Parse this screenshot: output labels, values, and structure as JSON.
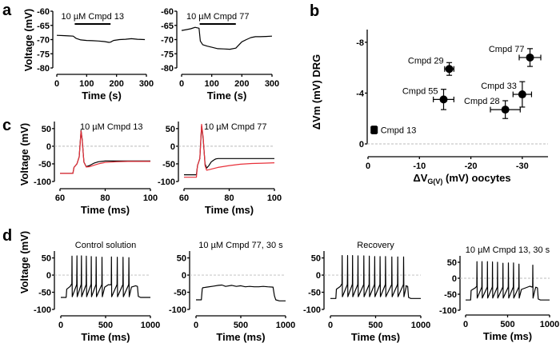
{
  "figure": {
    "panel_letters": [
      "a",
      "b",
      "c",
      "d"
    ],
    "colors": {
      "black": "#000000",
      "red": "#e8303a",
      "zero_line": "#bbbbbb"
    }
  },
  "chart_data": [
    {
      "id": "a1",
      "panel": "a",
      "type": "line",
      "title": "10 µM Cmpd 13",
      "xlabel": "Time (s)",
      "ylabel": "Voltage (mV)",
      "xlim": [
        0,
        300
      ],
      "ylim": [
        -80,
        -60
      ],
      "xticks": [
        0,
        100,
        200,
        300
      ],
      "yticks": [
        -60,
        -65,
        -70,
        -75,
        -80
      ],
      "drug_bar": [
        60,
        180
      ],
      "series": [
        {
          "name": "Vm",
          "color": "#000000",
          "x": [
            0,
            20,
            40,
            55,
            65,
            80,
            100,
            120,
            140,
            160,
            175,
            180,
            190,
            210,
            230,
            250,
            270,
            295
          ],
          "y": [
            -68.5,
            -68.6,
            -68.7,
            -68.8,
            -69.6,
            -70.1,
            -70.3,
            -70.4,
            -70.5,
            -70.7,
            -71.0,
            -70.9,
            -70.3,
            -70.0,
            -69.9,
            -69.7,
            -69.9,
            -70.0
          ]
        }
      ]
    },
    {
      "id": "a2",
      "panel": "a",
      "type": "line",
      "title": "10 µM Cmpd 77",
      "xlabel": "Time (s)",
      "ylabel": "",
      "xlim": [
        0,
        300
      ],
      "ylim": [
        -80,
        -60
      ],
      "xticks": [
        0,
        100,
        200,
        300
      ],
      "yticks": [
        -60,
        -65,
        -70,
        -75,
        -80
      ],
      "drug_bar": [
        60,
        180
      ],
      "series": [
        {
          "name": "Vm",
          "color": "#000000",
          "x": [
            0,
            15,
            30,
            45,
            58,
            62,
            70,
            85,
            100,
            120,
            140,
            160,
            180,
            190,
            200,
            215,
            230,
            245,
            260,
            280,
            300
          ],
          "y": [
            -66.8,
            -66.5,
            -66.2,
            -65.7,
            -66.0,
            -70.5,
            -71.8,
            -72.3,
            -72.7,
            -73.2,
            -73.3,
            -73.4,
            -73.0,
            -71.9,
            -70.8,
            -70.0,
            -69.3,
            -69.0,
            -69.0,
            -68.9,
            -68.8
          ]
        }
      ]
    },
    {
      "id": "b",
      "panel": "b",
      "type": "scatter",
      "xlabel": "ΔVG(V) (mV) oocytes",
      "xlabel_main": "ΔV",
      "xlabel_sub": "G(V)",
      "xlabel_rest": " (mV) oocytes",
      "ylabel": "ΔVm (mV) DRG",
      "xlim": [
        0,
        -35
      ],
      "ylim": [
        0,
        -9
      ],
      "xticks": [
        0,
        -10,
        -20,
        -30
      ],
      "yticks": [
        0,
        -4,
        -8
      ],
      "zero_line": true,
      "points": [
        {
          "label": "Cmpd 13",
          "x": -1.2,
          "y": -1.1,
          "xerr": 0.4,
          "yerr": 0.3,
          "marker": "square"
        },
        {
          "label": "Cmpd 29",
          "x": -15.8,
          "y": -5.9,
          "xerr": 0.9,
          "yerr": 0.5,
          "marker": "circle"
        },
        {
          "label": "Cmpd 55",
          "x": -14.7,
          "y": -3.5,
          "xerr": 2.0,
          "yerr": 0.8,
          "marker": "circle"
        },
        {
          "label": "Cmpd 77",
          "x": -31.5,
          "y": -6.8,
          "xerr": 2.1,
          "yerr": 0.7,
          "marker": "circle"
        },
        {
          "label": "Cmpd 33",
          "x": -30.0,
          "y": -3.9,
          "xerr": 1.8,
          "yerr": 1.0,
          "marker": "circle"
        },
        {
          "label": "Cmpd 28",
          "x": -26.7,
          "y": -2.7,
          "xerr": 2.9,
          "yerr": 0.7,
          "marker": "circle"
        }
      ]
    },
    {
      "id": "c1",
      "panel": "c",
      "type": "line",
      "title": "10 µM Cmpd 13",
      "xlabel": "Time (ms)",
      "ylabel": "Voltage (mV)",
      "xlim": [
        60,
        100
      ],
      "ylim": [
        -100,
        70
      ],
      "xticks": [
        60,
        80,
        100
      ],
      "yticks": [
        50,
        0,
        -50,
        -100
      ],
      "zero_line": true,
      "series": [
        {
          "name": "control",
          "color": "#000000",
          "x": [
            60,
            65.7,
            66.2,
            67.5,
            68.5,
            69.3,
            69.8,
            70.6,
            71.6,
            73,
            75,
            77,
            80,
            85,
            90,
            95,
            100
          ],
          "y": [
            -77,
            -77,
            -60,
            -50,
            -30,
            45,
            20,
            -45,
            -58,
            -55,
            -48,
            -44,
            -42,
            -42,
            -42,
            -42,
            -42
          ]
        },
        {
          "name": "10 µM Cmpd 13",
          "color": "#e8303a",
          "x": [
            60,
            65.7,
            66.2,
            67.5,
            68.5,
            69.3,
            69.8,
            70.6,
            71.6,
            73,
            75,
            77,
            80,
            85,
            90,
            95,
            100
          ],
          "y": [
            -77,
            -77,
            -60,
            -50,
            -30,
            43,
            18,
            -45,
            -59,
            -58,
            -54,
            -50,
            -46,
            -44,
            -43,
            -43,
            -43
          ]
        }
      ]
    },
    {
      "id": "c2",
      "panel": "c",
      "type": "line",
      "title": "10 µM Cmpd 77",
      "xlabel": "Time (ms)",
      "ylabel": "",
      "xlim": [
        60,
        100
      ],
      "ylim": [
        -100,
        70
      ],
      "xticks": [
        60,
        80,
        100
      ],
      "yticks": [
        50,
        0,
        -50,
        -100
      ],
      "zero_line": true,
      "series": [
        {
          "name": "control",
          "color": "#000000",
          "x": [
            60,
            65.5,
            66.0,
            67.0,
            67.8,
            68.5,
            69.3,
            70,
            71,
            72,
            73,
            74,
            75,
            80,
            90,
            100
          ],
          "y": [
            -81,
            -81,
            -55,
            -35,
            58,
            20,
            -50,
            -62,
            -55,
            -45,
            -40,
            -36,
            -35,
            -35,
            -35,
            -35
          ]
        },
        {
          "name": "10 µM Cmpd 77",
          "color": "#e8303a",
          "x": [
            60,
            65.5,
            66.0,
            67.0,
            67.8,
            68.5,
            69.3,
            70,
            72,
            75,
            80,
            85,
            90,
            95,
            100
          ],
          "y": [
            -88,
            -88,
            -55,
            -35,
            62,
            25,
            -55,
            -68,
            -65,
            -60,
            -55,
            -51,
            -49,
            -48,
            -47
          ]
        }
      ]
    },
    {
      "id": "d1",
      "panel": "d",
      "type": "line",
      "title": "Control solution",
      "xlabel": "Time (ms)",
      "ylabel": "Voltage (mV)",
      "xlim": [
        0,
        1000
      ],
      "ylim": [
        -100,
        70
      ],
      "xticks": [
        0,
        500,
        1000
      ],
      "yticks": [
        50,
        0,
        -50,
        -100
      ],
      "zero_line": true,
      "pulse": [
        60,
        860
      ],
      "rest_mV": -65,
      "plateau_mV": -33,
      "spike_times_ms": [
        125,
        180,
        230,
        285,
        340,
        395,
        460,
        565,
        630,
        695,
        760
      ],
      "spike_peaks_mV": [
        55,
        56,
        56,
        55,
        54,
        53,
        52,
        53,
        52,
        52,
        51
      ],
      "trough_mV": -63,
      "series": [
        {
          "name": "Vm",
          "color": "#000000"
        }
      ]
    },
    {
      "id": "d2",
      "panel": "d",
      "type": "line",
      "title": "10 µM Cmpd 77, 30 s",
      "xlabel": "Time (ms)",
      "ylabel": "",
      "xlim": [
        0,
        1000
      ],
      "ylim": [
        -100,
        70
      ],
      "xticks": [
        0,
        500,
        1000
      ],
      "yticks": [
        50,
        0,
        -50,
        -100
      ],
      "zero_line": true,
      "series": [
        {
          "name": "Vm",
          "color": "#000000",
          "x": [
            0,
            60,
            70,
            75,
            120,
            200,
            250,
            290,
            330,
            400,
            450,
            500,
            550,
            600,
            650,
            700,
            750,
            800,
            860,
            875,
            890,
            930,
            1000
          ],
          "y": [
            -72,
            -72,
            -40,
            -37,
            -35,
            -32,
            -30,
            -29,
            -33,
            -30,
            -33,
            -31,
            -34,
            -33,
            -34,
            -34,
            -33,
            -34,
            -35,
            -60,
            -72,
            -75,
            -75
          ]
        }
      ]
    },
    {
      "id": "d3",
      "panel": "d",
      "type": "line",
      "title": "Recovery",
      "xlabel": "Time (ms)",
      "ylabel": "",
      "xlim": [
        0,
        1000
      ],
      "ylim": [
        -100,
        70
      ],
      "xticks": [
        0,
        500,
        1000
      ],
      "yticks": [
        50,
        0,
        -50,
        -100
      ],
      "zero_line": true,
      "pulse": [
        60,
        860
      ],
      "rest_mV": -68,
      "plateau_mV": -33,
      "spike_times_ms": [
        130,
        190,
        245,
        305,
        370,
        430,
        490,
        550,
        610,
        680,
        745,
        810
      ],
      "spike_peaks_mV": [
        57,
        57,
        57,
        56,
        56,
        55,
        54,
        54,
        54,
        53,
        53,
        53
      ],
      "trough_mV": -63,
      "series": [
        {
          "name": "Vm",
          "color": "#000000"
        }
      ]
    },
    {
      "id": "d4",
      "panel": "d",
      "type": "line",
      "title": "10 µM Cmpd 13, 30 s",
      "xlabel": "Time (ms)",
      "ylabel": "",
      "xlim": [
        0,
        1000
      ],
      "ylim": [
        -100,
        70
      ],
      "xticks": [
        0,
        500,
        1000
      ],
      "yticks": [
        50,
        0,
        -50,
        -100
      ],
      "zero_line": true,
      "pulse": [
        60,
        860
      ],
      "rest_mV": -68,
      "plateau_mV": -30,
      "spike_times_ms": [
        135,
        195,
        260,
        320,
        380,
        445,
        510,
        570,
        635,
        800
      ],
      "spike_peaks_mV": [
        52,
        52,
        52,
        51,
        50,
        47,
        48,
        48,
        44,
        41
      ],
      "trough_mV": -62,
      "series": [
        {
          "name": "Vm",
          "color": "#000000"
        }
      ]
    }
  ]
}
